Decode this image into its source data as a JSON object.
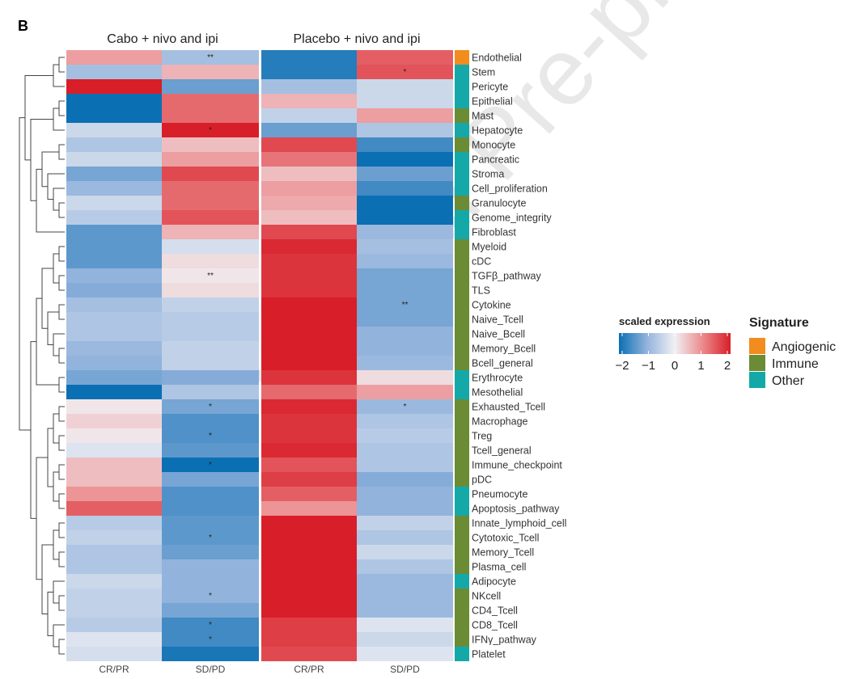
{
  "chart_data": {
    "type": "heatmap",
    "panel_label": "B",
    "groups": [
      "Cabo + nivo and ipi",
      "Placebo + nivo and ipi"
    ],
    "columns": [
      "CR/PR",
      "SD/PD",
      "CR/PR",
      "SD/PD"
    ],
    "color_scale": {
      "title": "scaled expression",
      "min": -2,
      "max": 2,
      "ticks": [
        "−2",
        "−1",
        "0",
        "1",
        "2"
      ],
      "low_color": "#0b6fb3",
      "mid_color": "#f0f0f4",
      "high_color": "#d81e28"
    },
    "signature_legend": {
      "title": "Signature",
      "categories": [
        {
          "name": "Angiogenic",
          "color": "#f28c1e"
        },
        {
          "name": "Immune",
          "color": "#6b8b35"
        },
        {
          "name": "Other",
          "color": "#14a9a8"
        }
      ]
    },
    "rows": [
      {
        "name": "Endothelial",
        "signature": "Angiogenic",
        "values": [
          0.8,
          -0.8,
          -1.8,
          1.4
        ],
        "marks": [
          "",
          "**",
          "",
          ""
        ]
      },
      {
        "name": "Stem",
        "signature": "Other",
        "values": [
          -0.8,
          0.6,
          -1.8,
          1.5
        ],
        "marks": [
          "",
          "",
          "",
          "*"
        ]
      },
      {
        "name": "Pericyte",
        "signature": "Other",
        "values": [
          2.0,
          -1.3,
          -0.8,
          -0.4
        ],
        "marks": [
          "",
          "",
          "",
          ""
        ]
      },
      {
        "name": "Epithelial",
        "signature": "Other",
        "values": [
          -2.0,
          1.3,
          0.6,
          -0.4
        ],
        "marks": [
          "",
          "",
          "",
          ""
        ]
      },
      {
        "name": "Mast",
        "signature": "Immune",
        "values": [
          -2.0,
          1.3,
          -0.5,
          0.8
        ],
        "marks": [
          "",
          "",
          "",
          ""
        ]
      },
      {
        "name": "Hepatocyte",
        "signature": "Other",
        "values": [
          -0.4,
          2.0,
          -1.3,
          -0.7
        ],
        "marks": [
          "",
          "*",
          "",
          ""
        ]
      },
      {
        "name": "Monocyte",
        "signature": "Immune",
        "values": [
          -0.7,
          0.5,
          1.6,
          -1.6
        ],
        "marks": [
          "",
          "",
          "",
          ""
        ]
      },
      {
        "name": "Pancreatic",
        "signature": "Other",
        "values": [
          -0.4,
          0.8,
          1.2,
          -2.0
        ],
        "marks": [
          "",
          "",
          "",
          ""
        ]
      },
      {
        "name": "Stroma",
        "signature": "Other",
        "values": [
          -1.2,
          1.6,
          0.5,
          -1.3
        ],
        "marks": [
          "",
          "",
          "",
          ""
        ]
      },
      {
        "name": "Cell_proliferation",
        "signature": "Other",
        "values": [
          -0.9,
          1.3,
          0.8,
          -1.6
        ],
        "marks": [
          "",
          "",
          "",
          ""
        ]
      },
      {
        "name": "Granulocyte",
        "signature": "Immune",
        "values": [
          -0.4,
          1.3,
          0.7,
          -2.0
        ],
        "marks": [
          "",
          "",
          "",
          ""
        ]
      },
      {
        "name": "Genome_integrity",
        "signature": "Other",
        "values": [
          -0.6,
          1.5,
          0.5,
          -2.0
        ],
        "marks": [
          "",
          "",
          "",
          ""
        ]
      },
      {
        "name": "Fibroblast",
        "signature": "Other",
        "values": [
          -1.4,
          0.6,
          1.6,
          -0.9
        ],
        "marks": [
          "",
          "",
          "",
          ""
        ]
      },
      {
        "name": "Myeloid",
        "signature": "Immune",
        "values": [
          -1.4,
          -0.3,
          1.9,
          -0.8
        ],
        "marks": [
          "",
          "",
          "",
          ""
        ]
      },
      {
        "name": "cDC",
        "signature": "Immune",
        "values": [
          -1.4,
          0.2,
          1.8,
          -0.9
        ],
        "marks": [
          "",
          "",
          "",
          ""
        ]
      },
      {
        "name": "TGFβ_pathway",
        "signature": "Immune",
        "values": [
          -1.0,
          0.1,
          1.8,
          -1.2
        ],
        "marks": [
          "",
          "**",
          "",
          ""
        ]
      },
      {
        "name": "TLS",
        "signature": "Immune",
        "values": [
          -1.1,
          0.2,
          1.8,
          -1.2
        ],
        "marks": [
          "",
          "",
          "",
          ""
        ]
      },
      {
        "name": "Cytokine",
        "signature": "Immune",
        "values": [
          -0.8,
          -0.5,
          2.0,
          -1.2
        ],
        "marks": [
          "",
          "",
          "",
          "**"
        ]
      },
      {
        "name": "Naive_Tcell",
        "signature": "Immune",
        "values": [
          -0.7,
          -0.6,
          2.0,
          -1.2
        ],
        "marks": [
          "",
          "",
          "",
          ""
        ]
      },
      {
        "name": "Naive_Bcell",
        "signature": "Immune",
        "values": [
          -0.7,
          -0.6,
          2.0,
          -1.0
        ],
        "marks": [
          "",
          "",
          "",
          ""
        ]
      },
      {
        "name": "Memory_Bcell",
        "signature": "Immune",
        "values": [
          -0.9,
          -0.5,
          2.0,
          -1.0
        ],
        "marks": [
          "",
          "",
          "",
          ""
        ]
      },
      {
        "name": "Bcell_general",
        "signature": "Immune",
        "values": [
          -1.0,
          -0.5,
          2.0,
          -0.9
        ],
        "marks": [
          "",
          "",
          "",
          ""
        ]
      },
      {
        "name": "Erythrocyte",
        "signature": "Other",
        "values": [
          -1.2,
          -1.1,
          1.8,
          0.2
        ],
        "marks": [
          "",
          "",
          "",
          ""
        ]
      },
      {
        "name": "Mesothelial",
        "signature": "Other",
        "values": [
          -2.0,
          -0.7,
          1.3,
          0.8
        ],
        "marks": [
          "",
          "",
          "",
          ""
        ]
      },
      {
        "name": "Exhausted_Tcell",
        "signature": "Immune",
        "values": [
          0.1,
          -1.2,
          1.9,
          -0.9
        ],
        "marks": [
          "",
          "*",
          "",
          "*"
        ]
      },
      {
        "name": "Macrophage",
        "signature": "Immune",
        "values": [
          0.3,
          -1.5,
          1.8,
          -0.7
        ],
        "marks": [
          "",
          "",
          "",
          ""
        ]
      },
      {
        "name": "Treg",
        "signature": "Immune",
        "values": [
          0.1,
          -1.5,
          1.8,
          -0.6
        ],
        "marks": [
          "",
          "*",
          "",
          ""
        ]
      },
      {
        "name": "Tcell_general",
        "signature": "Immune",
        "values": [
          -0.2,
          -1.4,
          1.9,
          -0.7
        ],
        "marks": [
          "",
          "",
          "",
          ""
        ]
      },
      {
        "name": "Immune_checkpoint",
        "signature": "Immune",
        "values": [
          0.5,
          -2.0,
          1.5,
          -0.7
        ],
        "marks": [
          "",
          "*",
          "",
          ""
        ]
      },
      {
        "name": "pDC",
        "signature": "Immune",
        "values": [
          0.5,
          -1.2,
          1.7,
          -1.1
        ],
        "marks": [
          "",
          "",
          "",
          ""
        ]
      },
      {
        "name": "Pneumocyte",
        "signature": "Other",
        "values": [
          0.9,
          -1.5,
          1.4,
          -1.0
        ],
        "marks": [
          "",
          "",
          "",
          ""
        ]
      },
      {
        "name": "Apoptosis_pathway",
        "signature": "Other",
        "values": [
          1.4,
          -1.5,
          0.9,
          -1.0
        ],
        "marks": [
          "",
          "",
          "",
          ""
        ]
      },
      {
        "name": "Innate_lymphoid_cell",
        "signature": "Immune",
        "values": [
          -0.6,
          -1.4,
          2.0,
          -0.5
        ],
        "marks": [
          "",
          "",
          "",
          ""
        ]
      },
      {
        "name": "Cytotoxic_Tcell",
        "signature": "Immune",
        "values": [
          -0.5,
          -1.4,
          2.0,
          -0.7
        ],
        "marks": [
          "",
          "*",
          "",
          ""
        ]
      },
      {
        "name": "Memory_Tcell",
        "signature": "Immune",
        "values": [
          -0.7,
          -1.3,
          2.0,
          -0.4
        ],
        "marks": [
          "",
          "",
          "",
          ""
        ]
      },
      {
        "name": "Plasma_cell",
        "signature": "Immune",
        "values": [
          -0.7,
          -1.0,
          2.0,
          -0.7
        ],
        "marks": [
          "",
          "",
          "",
          ""
        ]
      },
      {
        "name": "Adipocyte",
        "signature": "Other",
        "values": [
          -0.4,
          -1.0,
          2.0,
          -0.9
        ],
        "marks": [
          "",
          "",
          "",
          ""
        ]
      },
      {
        "name": "NKcell",
        "signature": "Immune",
        "values": [
          -0.5,
          -1.0,
          2.0,
          -0.9
        ],
        "marks": [
          "",
          "*",
          "",
          ""
        ]
      },
      {
        "name": "CD4_Tcell",
        "signature": "Immune",
        "values": [
          -0.5,
          -1.2,
          2.0,
          -0.9
        ],
        "marks": [
          "",
          "",
          "",
          ""
        ]
      },
      {
        "name": "CD8_Tcell",
        "signature": "Immune",
        "values": [
          -0.6,
          -1.6,
          1.7,
          -0.2
        ],
        "marks": [
          "",
          "*",
          "",
          ""
        ]
      },
      {
        "name": "IFNγ_pathway",
        "signature": "Immune",
        "values": [
          -0.2,
          -1.6,
          1.7,
          -0.4
        ],
        "marks": [
          "",
          "*",
          "",
          ""
        ]
      },
      {
        "name": "Platelet",
        "signature": "Other",
        "values": [
          -0.3,
          -1.9,
          1.6,
          -0.2
        ],
        "marks": [
          "",
          "",
          "",
          ""
        ]
      }
    ],
    "row_dendrogram": true
  },
  "watermark": "Journal Pre-proof"
}
